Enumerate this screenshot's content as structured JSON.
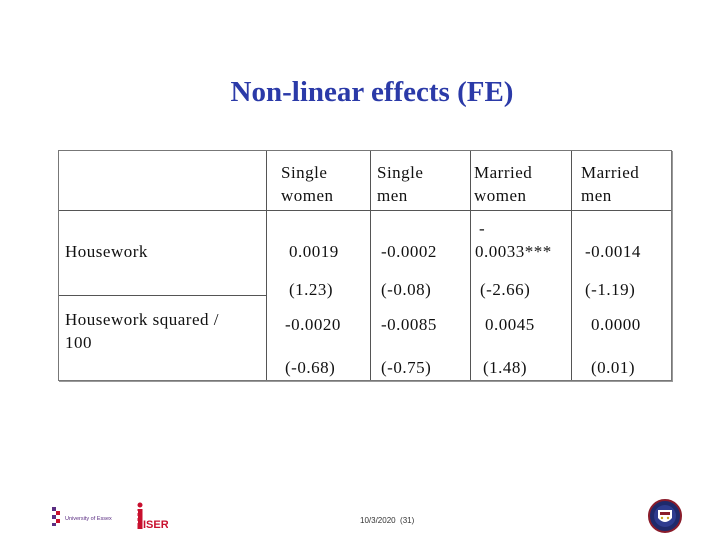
{
  "slide": {
    "title": "Non-linear effects (FE)",
    "footer_date": "10/3/2020",
    "footer_page": "(31)"
  },
  "table": {
    "headers": [
      {
        "line1": "Single",
        "line2": "women"
      },
      {
        "line1": "Single",
        "line2": "men"
      },
      {
        "line1": "Married",
        "line2": "women"
      },
      {
        "line1": "Married",
        "line2": "men"
      }
    ],
    "rows": [
      {
        "label": "Housework",
        "coef": [
          "0.0019",
          "-0.0002",
          "-",
          "-0.0014"
        ],
        "coef_married_women_line2": "0.0033***",
        "tstat": [
          "(1.23)",
          "(-0.08)",
          "(-2.66)",
          "(-1.19)"
        ]
      },
      {
        "label_line1": "Housework squared /",
        "label_line2": "100",
        "coef": [
          "-0.0020",
          "-0.0085",
          "0.0045",
          "0.0000"
        ],
        "tstat": [
          "(-0.68)",
          "(-0.75)",
          "(1.48)",
          "(0.01)"
        ]
      }
    ]
  },
  "logos": {
    "essex_text": "University of Essex",
    "iser_text": "ISER",
    "colors": {
      "title": "#2b3aa8",
      "iser_red": "#c8102e",
      "essex_purple": "#5a2d82",
      "crest_blue": "#1f2a6b"
    }
  }
}
